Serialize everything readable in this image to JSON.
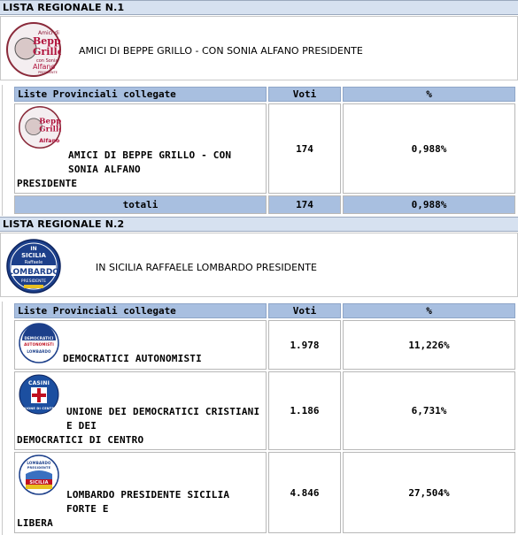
{
  "lista1": {
    "header": "LISTA REGIONALE N.1",
    "name": "AMICI DI BEPPE GRILLO - CON SONIA ALFANO PRESIDENTE",
    "logo_text": [
      "Amici di",
      "Beppe",
      "Grillo",
      "con Sonia",
      "Alfano",
      "PRESIDENTE"
    ],
    "columns": [
      "Liste Provinciali collegate",
      "Voti",
      "%"
    ],
    "rows": [
      {
        "name_line1": "AMICI DI BEPPE GRILLO - CON SONIA ALFANO",
        "name_line2": "PRESIDENTE",
        "voti": "174",
        "pct": "0,988%"
      }
    ],
    "totals": {
      "label": "totali",
      "voti": "174",
      "pct": "0,988%"
    }
  },
  "lista2": {
    "header": "LISTA REGIONALE N.2",
    "name": "IN SICILIA RAFFAELE LOMBARDO PRESIDENTE",
    "logo_text": [
      "IN",
      "SICILIA",
      "Raffaele",
      "LOMBARDO",
      "PRESIDENTE"
    ],
    "columns": [
      "Liste Provinciali collegate",
      "Voti",
      "%"
    ],
    "rows": [
      {
        "name_line1": "DEMOCRATICI AUTONOMISTI",
        "name_line2": "",
        "voti": "1.978",
        "pct": "11,226%",
        "logo_text": [
          "DEMOCRATICI",
          "AUTONOMISTI",
          "LOMBARDO"
        ]
      },
      {
        "name_line1": "UNIONE DEI DEMOCRATICI CRISTIANI E DEI",
        "name_line2": "DEMOCRATICI DI CENTRO",
        "voti": "1.186",
        "pct": "6,731%",
        "logo_text": [
          "CASINI",
          "UNIONE DI CENTRO"
        ]
      },
      {
        "name_line1": "LOMBARDO PRESIDENTE SICILIA FORTE E",
        "name_line2": "LIBERA",
        "voti": "4.846",
        "pct": "27,504%",
        "logo_text": [
          "LOMBARDO",
          "PRESIDENTE",
          "SICILIA"
        ]
      }
    ]
  },
  "colors": {
    "header_bg": "#d6e1f0",
    "table_header_bg": "#a8bfe0"
  }
}
